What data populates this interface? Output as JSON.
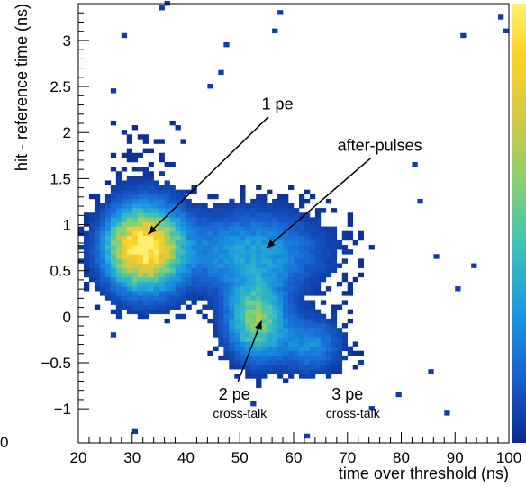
{
  "chart_data": {
    "type": "heatmap",
    "title": "",
    "xlabel": "time over threshold (ns)",
    "ylabel": "hit - reference time (ns)",
    "xlim": [
      20,
      100
    ],
    "ylim": [
      -1.37,
      3.4
    ],
    "x_ticks": [
      "20",
      "30",
      "40",
      "50",
      "60",
      "70",
      "80",
      "90",
      "100"
    ],
    "x_tick_values": [
      20,
      30,
      40,
      50,
      60,
      70,
      80,
      90,
      100
    ],
    "y_ticks": [
      "−1",
      "−0.5",
      "0",
      "0.5",
      "1",
      "1.5",
      "2",
      "2.5",
      "3"
    ],
    "y_tick_values": [
      -1,
      -0.5,
      0,
      0.5,
      1,
      1.5,
      2,
      2.5,
      3
    ],
    "clipped_left_label": "0",
    "colormap": [
      "#0a2a8c",
      "#1760d0",
      "#1a9be0",
      "#3ec1b9",
      "#8ad06a",
      "#d9c843",
      "#ffd020",
      "#fff070"
    ],
    "clusters": [
      {
        "label": "1 pe",
        "x": 32,
        "y": 0.75,
        "sx": 4.5,
        "sy": 0.28,
        "peak": 1.0
      },
      {
        "label": "2 pe cross-talk",
        "x": 53,
        "y": -0.03,
        "sx": 3.5,
        "sy": 0.28,
        "peak": 0.55
      },
      {
        "label": "3 pe cross-talk",
        "x": 63,
        "y": -0.3,
        "sx": 4,
        "sy": 0.2,
        "peak": 0.25
      },
      {
        "label": "after-pulses",
        "x": 52,
        "y": 0.7,
        "sx": 9,
        "sy": 0.3,
        "peak": 0.3
      }
    ],
    "annotations": [
      {
        "text": "1 pe",
        "tip_x": 33,
        "tip_y": 0.9,
        "text_x": 57,
        "text_y": 2.25
      },
      {
        "text": "after-pulses",
        "tip_x": 55,
        "tip_y": 0.75,
        "text_x": 76,
        "text_y": 1.8
      },
      {
        "text": "2 pe",
        "sub": "cross-talk",
        "tip_x": 54,
        "tip_y": -0.05,
        "text_x": 49,
        "text_y": -0.9
      },
      {
        "text": "3 pe",
        "sub": "cross-talk",
        "text_x": 70,
        "text_y": -0.9
      }
    ]
  }
}
